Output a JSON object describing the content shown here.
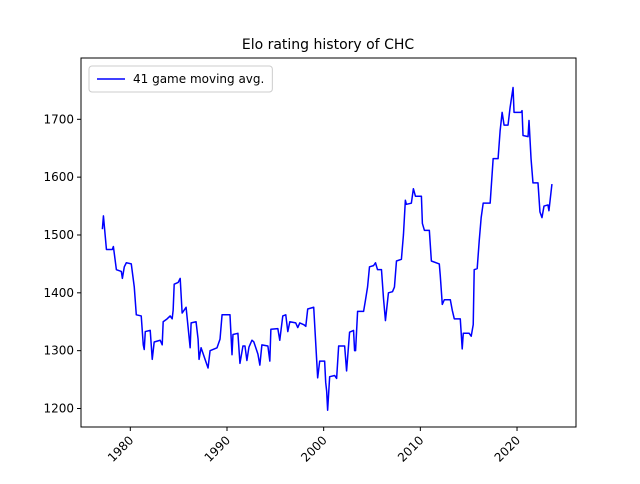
{
  "chart_data": {
    "type": "line",
    "title": "Elo rating history of CHC",
    "x": [
      1977.11,
      1977.22,
      1977.53,
      1978.14,
      1978.25,
      1978.56,
      1979.07,
      1979.18,
      1979.38,
      1979.59,
      1980.1,
      1980.41,
      1980.62,
      1981.13,
      1981.34,
      1981.44,
      1981.55,
      1982.06,
      1982.27,
      1982.47,
      1983.09,
      1983.3,
      1983.4,
      1983.81,
      1984.12,
      1984.33,
      1984.43,
      1984.54,
      1984.95,
      1985.16,
      1985.36,
      1985.77,
      1986.19,
      1986.29,
      1986.8,
      1987.01,
      1987.11,
      1987.32,
      1988.04,
      1988.25,
      1988.97,
      1989.28,
      1989.49,
      1990.31,
      1990.52,
      1990.62,
      1991.13,
      1991.34,
      1991.65,
      1991.86,
      1992.06,
      1992.27,
      1992.58,
      1992.78,
      1993.2,
      1993.4,
      1993.61,
      1994.23,
      1994.43,
      1994.54,
      1995.26,
      1995.46,
      1995.77,
      1996.08,
      1996.29,
      1996.5,
      1997.11,
      1997.32,
      1997.53,
      1997.94,
      1998.15,
      1998.35,
      1998.97,
      1999.38,
      1999.59,
      2000.1,
      2000.21,
      2000.31,
      2000.41,
      2000.62,
      2001.14,
      2001.34,
      2001.55,
      2002.17,
      2002.37,
      2002.68,
      2003.09,
      2003.2,
      2003.3,
      2003.51,
      2004.13,
      2004.33,
      2004.54,
      2004.74,
      2005.16,
      2005.36,
      2005.57,
      2005.98,
      2006.19,
      2006.39,
      2006.7,
      2007.12,
      2007.32,
      2007.53,
      2008.04,
      2008.25,
      2008.45,
      2008.56,
      2009.07,
      2009.28,
      2009.49,
      2010.11,
      2010.21,
      2010.42,
      2010.93,
      2011.14,
      2011.96,
      2012.06,
      2012.27,
      2012.48,
      2013.1,
      2013.3,
      2013.51,
      2014.13,
      2014.33,
      2014.44,
      2015.05,
      2015.26,
      2015.47,
      2015.57,
      2015.88,
      2016.09,
      2016.29,
      2016.5,
      2017.22,
      2017.53,
      2018.04,
      2018.25,
      2018.46,
      2018.66,
      2019.07,
      2019.28,
      2019.59,
      2019.69,
      2020.41,
      2020.52,
      2020.62,
      2021.14,
      2021.24,
      2021.45,
      2021.65,
      2022.17,
      2022.37,
      2022.58,
      2022.79,
      2023.2,
      2023.3,
      2023.61
    ],
    "series": [
      {
        "name": "41 game moving avg.",
        "color": "#0000ff",
        "values": [
          1510,
          1533,
          1475,
          1475,
          1480,
          1440,
          1437,
          1425,
          1445,
          1452,
          1450,
          1410,
          1362,
          1360,
          1310,
          1302,
          1333,
          1335,
          1285,
          1315,
          1318,
          1310,
          1350,
          1355,
          1360,
          1355,
          1370,
          1415,
          1418,
          1425,
          1365,
          1375,
          1305,
          1348,
          1350,
          1320,
          1285,
          1305,
          1270,
          1300,
          1305,
          1320,
          1362,
          1362,
          1293,
          1328,
          1330,
          1278,
          1308,
          1308,
          1283,
          1306,
          1318,
          1315,
          1294,
          1275,
          1310,
          1308,
          1282,
          1337,
          1338,
          1318,
          1360,
          1362,
          1333,
          1350,
          1348,
          1340,
          1348,
          1345,
          1342,
          1372,
          1375,
          1253,
          1282,
          1282,
          1245,
          1230,
          1197,
          1255,
          1257,
          1252,
          1308,
          1308,
          1265,
          1332,
          1335,
          1300,
          1300,
          1368,
          1368,
          1388,
          1410,
          1445,
          1447,
          1452,
          1440,
          1440,
          1390,
          1352,
          1400,
          1402,
          1410,
          1455,
          1458,
          1500,
          1560,
          1553,
          1555,
          1580,
          1567,
          1567,
          1520,
          1508,
          1508,
          1455,
          1450,
          1430,
          1380,
          1388,
          1388,
          1370,
          1355,
          1355,
          1303,
          1330,
          1330,
          1325,
          1345,
          1440,
          1442,
          1490,
          1530,
          1555,
          1555,
          1632,
          1632,
          1680,
          1712,
          1690,
          1690,
          1720,
          1755,
          1712,
          1712,
          1715,
          1672,
          1670,
          1698,
          1632,
          1590,
          1590,
          1540,
          1530,
          1550,
          1552,
          1542,
          1588
        ]
      }
    ],
    "xlim": [
      1974.9,
      2026.1
    ],
    "xticks": [
      1980,
      1990,
      2000,
      2010,
      2020
    ],
    "ylim": [
      1168,
      1806
    ],
    "yticks": [
      1200,
      1300,
      1400,
      1500,
      1600,
      1700
    ],
    "legend": "upper left",
    "grid": false
  }
}
